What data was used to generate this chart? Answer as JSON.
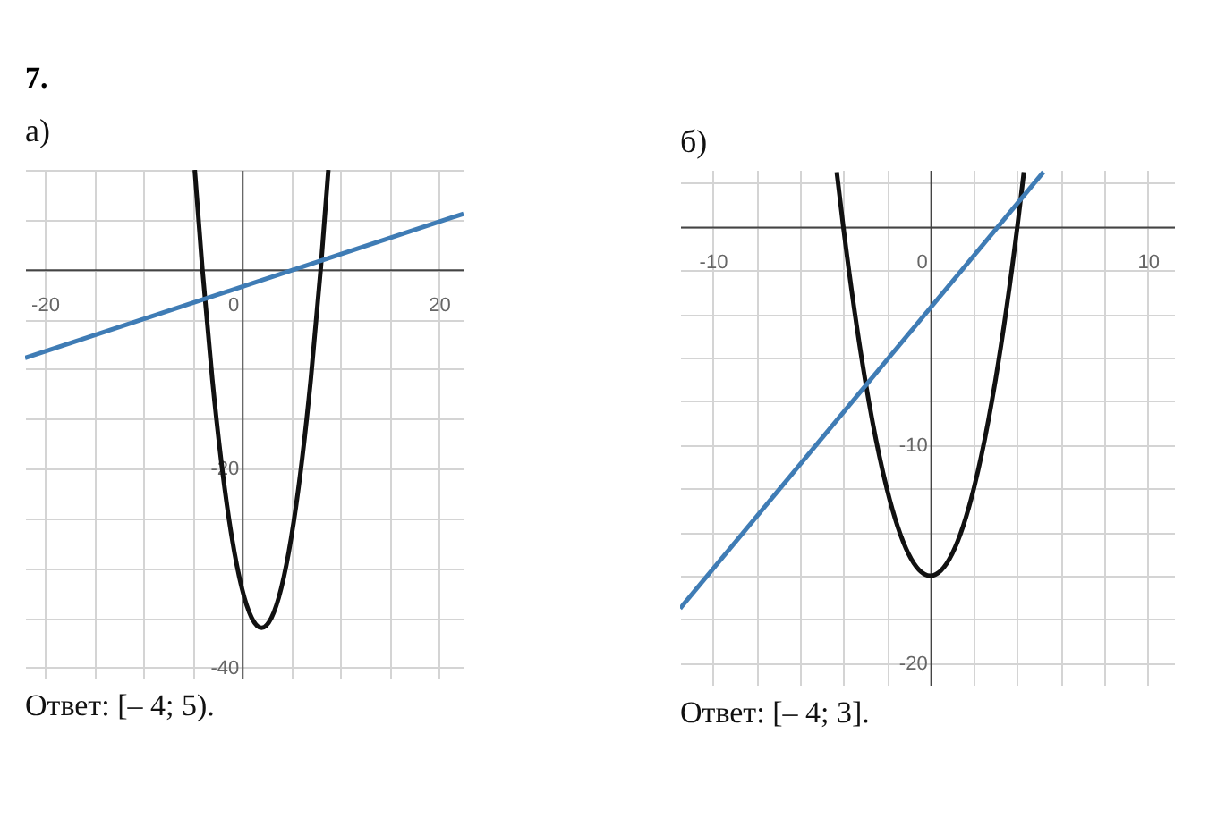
{
  "chart_data": [
    {
      "type": "line",
      "title": "а)",
      "annotations": [
        "7.",
        "Ответ: [– 4; 5)."
      ],
      "grid": true,
      "xlim": [
        -22,
        22.5
      ],
      "ylim": [
        -41,
        10
      ],
      "xticks": [
        {
          "value": -20,
          "label": "-20"
        },
        {
          "value": -15,
          "label": null
        },
        {
          "value": -10,
          "label": null
        },
        {
          "value": -5,
          "label": null
        },
        {
          "value": 0,
          "label": "0"
        },
        {
          "value": 5,
          "label": null
        },
        {
          "value": 10,
          "label": null
        },
        {
          "value": 15,
          "label": null
        },
        {
          "value": 20,
          "label": "20"
        }
      ],
      "yticks": [
        {
          "value": 10,
          "label": null
        },
        {
          "value": 5,
          "label": null
        },
        {
          "value": 0,
          "label": null
        },
        {
          "value": -5,
          "label": null
        },
        {
          "value": -10,
          "label": null
        },
        {
          "value": -15,
          "label": null
        },
        {
          "value": -20,
          "label": "-20"
        },
        {
          "value": -25,
          "label": null
        },
        {
          "value": -30,
          "label": null
        },
        {
          "value": -35,
          "label": null
        },
        {
          "value": -40,
          "label": "-40"
        }
      ],
      "series": [
        {
          "color": "#111111",
          "x": [
            -4.78,
            -4,
            -3,
            -2,
            -1,
            0,
            1,
            2,
            3,
            4,
            5,
            6,
            7,
            8,
            8.78
          ],
          "values": [
            10,
            0,
            -11,
            -20,
            -27,
            -32,
            -35,
            -36,
            -35,
            -32,
            -27,
            -20,
            -11,
            0,
            10
          ]
        },
        {
          "color": "#3f7cb5",
          "x": [
            -22,
            22.5
          ],
          "values": [
            -8.9,
            5.6
          ]
        }
      ]
    },
    {
      "type": "line",
      "title": "б)",
      "annotations": [
        "Ответ: [– 4; 3]."
      ],
      "grid": true,
      "xlim": [
        -11.5,
        11.2
      ],
      "ylim": [
        -21,
        2.6
      ],
      "xticks": [
        {
          "value": -10,
          "label": "-10"
        },
        {
          "value": -8,
          "label": null
        },
        {
          "value": -6,
          "label": null
        },
        {
          "value": -4,
          "label": null
        },
        {
          "value": -2,
          "label": null
        },
        {
          "value": 0,
          "label": "0"
        },
        {
          "value": 2,
          "label": null
        },
        {
          "value": 4,
          "label": null
        },
        {
          "value": 6,
          "label": null
        },
        {
          "value": 8,
          "label": null
        },
        {
          "value": 10,
          "label": "10"
        }
      ],
      "yticks": [
        {
          "value": 2,
          "label": null
        },
        {
          "value": 0,
          "label": null
        },
        {
          "value": -2,
          "label": null
        },
        {
          "value": -4,
          "label": null
        },
        {
          "value": -6,
          "label": null
        },
        {
          "value": -8,
          "label": null
        },
        {
          "value": -10,
          "label": "-10"
        },
        {
          "value": -12,
          "label": null
        },
        {
          "value": -14,
          "label": null
        },
        {
          "value": -16,
          "label": null
        },
        {
          "value": -18,
          "label": null
        },
        {
          "value": -20,
          "label": "-20"
        }
      ],
      "series": [
        {
          "color": "#111111",
          "x": [
            -4.3,
            -4,
            -3,
            -2,
            -1,
            0,
            1,
            2,
            3,
            4,
            4.3
          ],
          "values": [
            2.5,
            0,
            -7,
            -12,
            -15,
            -16,
            -15,
            -12,
            -7,
            0,
            2.5
          ]
        },
        {
          "color": "#3f7cb5",
          "x": [
            -11.5,
            5.2
          ],
          "values": [
            -17.5,
            2.5
          ]
        }
      ]
    }
  ]
}
